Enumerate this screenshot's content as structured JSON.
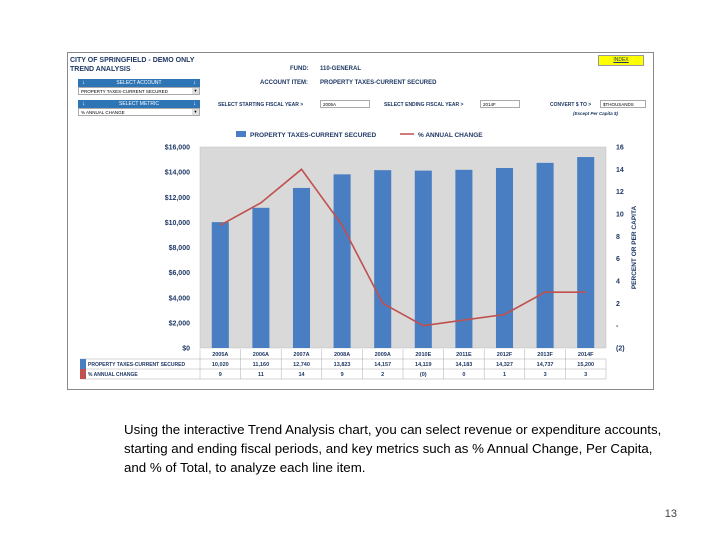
{
  "header": {
    "line1": "CITY OF SPRINGFIELD - DEMO ONLY",
    "line2": "TREND ANALYSIS",
    "index_label": "INDEX",
    "fund_label": "FUND:",
    "fund_value": "110-GENERAL",
    "account_item_label": "ACCOUNT ITEM:",
    "account_item_value": "PROPERTY TAXES-CURRENT SECURED"
  },
  "controls": {
    "select_account_label": "SELECT ACCOUNT",
    "select_account_value": "PROPERTY TAXES-CURRENT SECURED",
    "select_metric_label": "SELECT METRIC",
    "select_metric_value": "% ANNUAL CHANGE",
    "start_year_label": "SELECT STARTING FISCAL YEAR >",
    "start_year_value": "2005A",
    "end_year_label": "SELECT ENDING FISCAL YEAR >",
    "end_year_value": "2014F",
    "convert_label": "CONVERT $ TO >",
    "convert_value": "$THOUSANDS",
    "convert_note": "(Except Per Capita $)"
  },
  "chart_data": {
    "type": "bar",
    "categories": [
      "2005A",
      "2006A",
      "2007A",
      "2008A",
      "2009A",
      "2010E",
      "2011E",
      "2012F",
      "2013F",
      "2014F"
    ],
    "series": [
      {
        "name": "PROPERTY TAXES-CURRENT SECURED",
        "kind": "bar",
        "axis": "left",
        "color": "#4a7ec2",
        "values": [
          10020,
          11160,
          12740,
          13823,
          14157,
          14119,
          14183,
          14327,
          14737,
          15200
        ],
        "display": [
          "10,020",
          "11,160",
          "12,740",
          "13,823",
          "14,157",
          "14,119",
          "14,183",
          "14,327",
          "14,737",
          "15,200"
        ]
      },
      {
        "name": "% ANNUAL CHANGE",
        "kind": "line",
        "axis": "right",
        "color": "#c0504d",
        "values": [
          9,
          11,
          14,
          9,
          2,
          0,
          0.5,
          1,
          3,
          3
        ],
        "display": [
          "9",
          "11",
          "14",
          "9",
          "2",
          "(0)",
          "0",
          "1",
          "3",
          "3"
        ]
      }
    ],
    "ylim": [
      0,
      16000
    ],
    "yticks": [
      0,
      2000,
      4000,
      6000,
      8000,
      10000,
      12000,
      14000,
      16000
    ],
    "yticklabels": [
      "$0",
      "$2,000",
      "$4,000",
      "$6,000",
      "$8,000",
      "$10,000",
      "$12,000",
      "$14,000",
      "$16,000"
    ],
    "y2lim": [
      -2,
      16
    ],
    "y2ticks": [
      -2,
      0,
      2,
      4,
      6,
      8,
      10,
      12,
      14,
      16
    ],
    "y2ticklabels": [
      "(2)",
      "-",
      "2",
      "4",
      "6",
      "8",
      "10",
      "12",
      "14",
      "16"
    ],
    "y2label": "PERCENT OR PER CAPITA",
    "legend": "top",
    "grid": false,
    "plot_background": "#d9d9d9",
    "table_row_labels": [
      "PROPERTY TAXES-CURRENT SECURED",
      "% ANNUAL CHANGE"
    ]
  },
  "caption": "Using the interactive Trend Analysis chart, you can select revenue or expenditure accounts, starting and ending fiscal periods, and key metrics such as % Annual Change, Per Capita, and % of Total, to analyze each line item.",
  "page_number": "13"
}
